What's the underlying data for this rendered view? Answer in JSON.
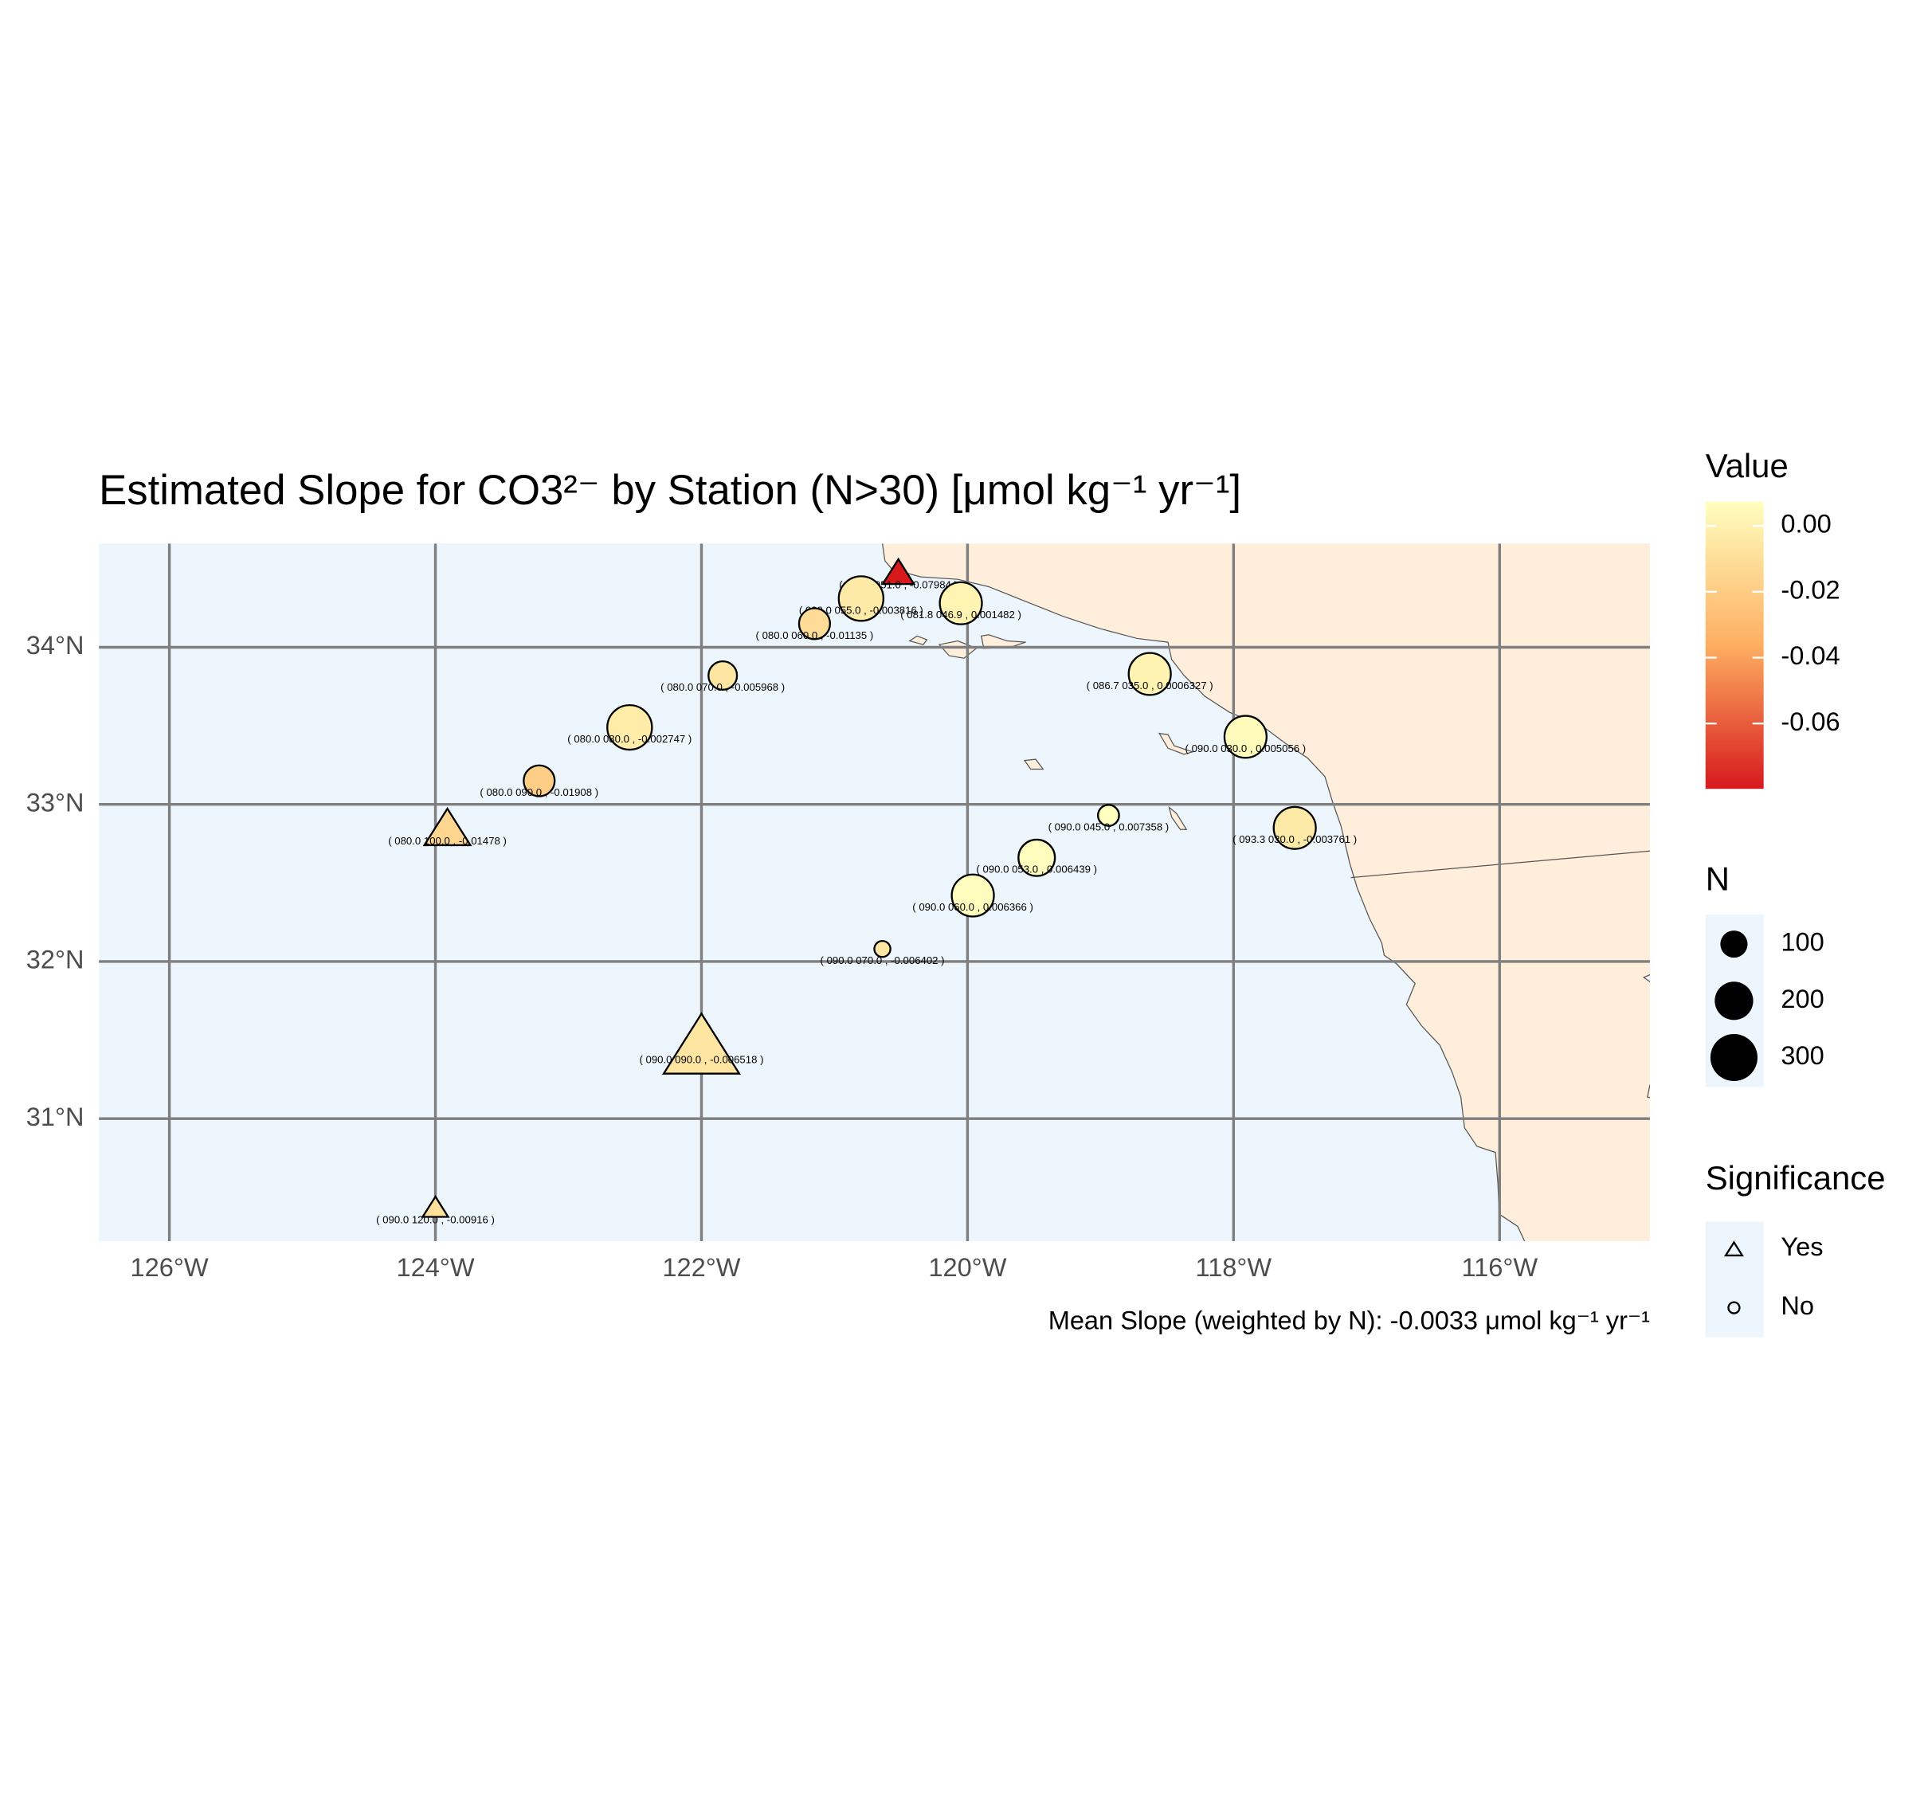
{
  "chart_data": {
    "type": "map",
    "title": "Estimated Slope for CO3²⁻ by Station (N>30) [μmol kg⁻¹ yr⁻¹]",
    "caption": "Mean Slope (weighted by N): -0.0033 μmol kg⁻¹ yr⁻¹",
    "xlim": [
      -126.53,
      -114.87
    ],
    "ylim": [
      30.22,
      34.66
    ],
    "xticks": [
      {
        "value": -126,
        "label": "126°W"
      },
      {
        "value": -124,
        "label": "124°W"
      },
      {
        "value": -122,
        "label": "122°W"
      },
      {
        "value": -120,
        "label": "120°W"
      },
      {
        "value": -118,
        "label": "118°W"
      },
      {
        "value": -116,
        "label": "116°W"
      }
    ],
    "yticks": [
      {
        "value": 31,
        "label": "31°N"
      },
      {
        "value": 32,
        "label": "32°N"
      },
      {
        "value": 33,
        "label": "33°N"
      },
      {
        "value": 34,
        "label": "34°N"
      }
    ],
    "grid": true,
    "x": [
      -120.52,
      -120.8,
      -120.05,
      -121.15,
      -121.84,
      -122.54,
      -123.22,
      -123.91,
      -118.63,
      -117.91,
      -118.94,
      -117.54,
      -119.48,
      -119.96,
      -120.64,
      -122.0,
      -124.0
    ],
    "y": [
      34.47,
      34.31,
      34.28,
      34.15,
      33.82,
      33.49,
      33.15,
      32.84,
      33.83,
      33.43,
      32.93,
      32.85,
      32.66,
      32.42,
      32.08,
      31.45,
      30.43
    ],
    "values": [
      -0.07984,
      -0.003816,
      0.001482,
      -0.01135,
      -0.005968,
      -0.002747,
      -0.01908,
      -0.01478,
      0.0006327,
      0.005056,
      0.007358,
      -0.003761,
      0.006439,
      0.006366,
      -0.006402,
      -0.006518,
      -0.00916
    ],
    "sizes": [
      60,
      270,
      240,
      130,
      110,
      270,
      130,
      130,
      240,
      240,
      60,
      240,
      180,
      240,
      35,
      350,
      40
    ],
    "significance": [
      "Yes",
      "No",
      "No",
      "No",
      "No",
      "No",
      "No",
      "Yes",
      "No",
      "No",
      "No",
      "No",
      "No",
      "No",
      "No",
      "Yes",
      "Yes"
    ],
    "point_labels": [
      "( 080.0 051.0 , -0.07984 )",
      "( 080.0 055.0 , -0.003816 )",
      "( 081.8 046.9 , 0.001482 )",
      "( 080.0 060.0 , -0.01135 )",
      "( 080.0 070.0 , -0.005968 )",
      "( 080.0 080.0 , -0.002747 )",
      "( 080.0 090.0 , -0.01908 )",
      "( 080.0 100.0 , -0.01478 )",
      "( 086.7 035.0 , 0.0006327 )",
      "( 090.0 030.0 , 0.005056 )",
      "( 090.0 045.0 , 0.007358 )",
      "( 093.3 030.0 , -0.003761 )",
      "( 090.0 053.0 , 0.006439 )",
      "( 090.0 060.0 , 0.006366 )",
      "( 090.0 070.0 , -0.006402 )",
      "( 090.0 090.0 , -0.006518 )",
      "( 090.0 120.0 , -0.00916 )"
    ],
    "color_scale": [
      "#d7191c",
      "#fdae61",
      "#ffffbf"
    ],
    "color_legend_title": "Value",
    "color_ticks": [
      {
        "value": 0,
        "label": "0.00"
      },
      -0.02,
      -0.04,
      -0.06
    ],
    "size_legend_title": "N",
    "size_legend": [
      100,
      200,
      300
    ],
    "shape_legend_title": "Significance",
    "shape_legend": [
      "Yes",
      "No"
    ]
  }
}
